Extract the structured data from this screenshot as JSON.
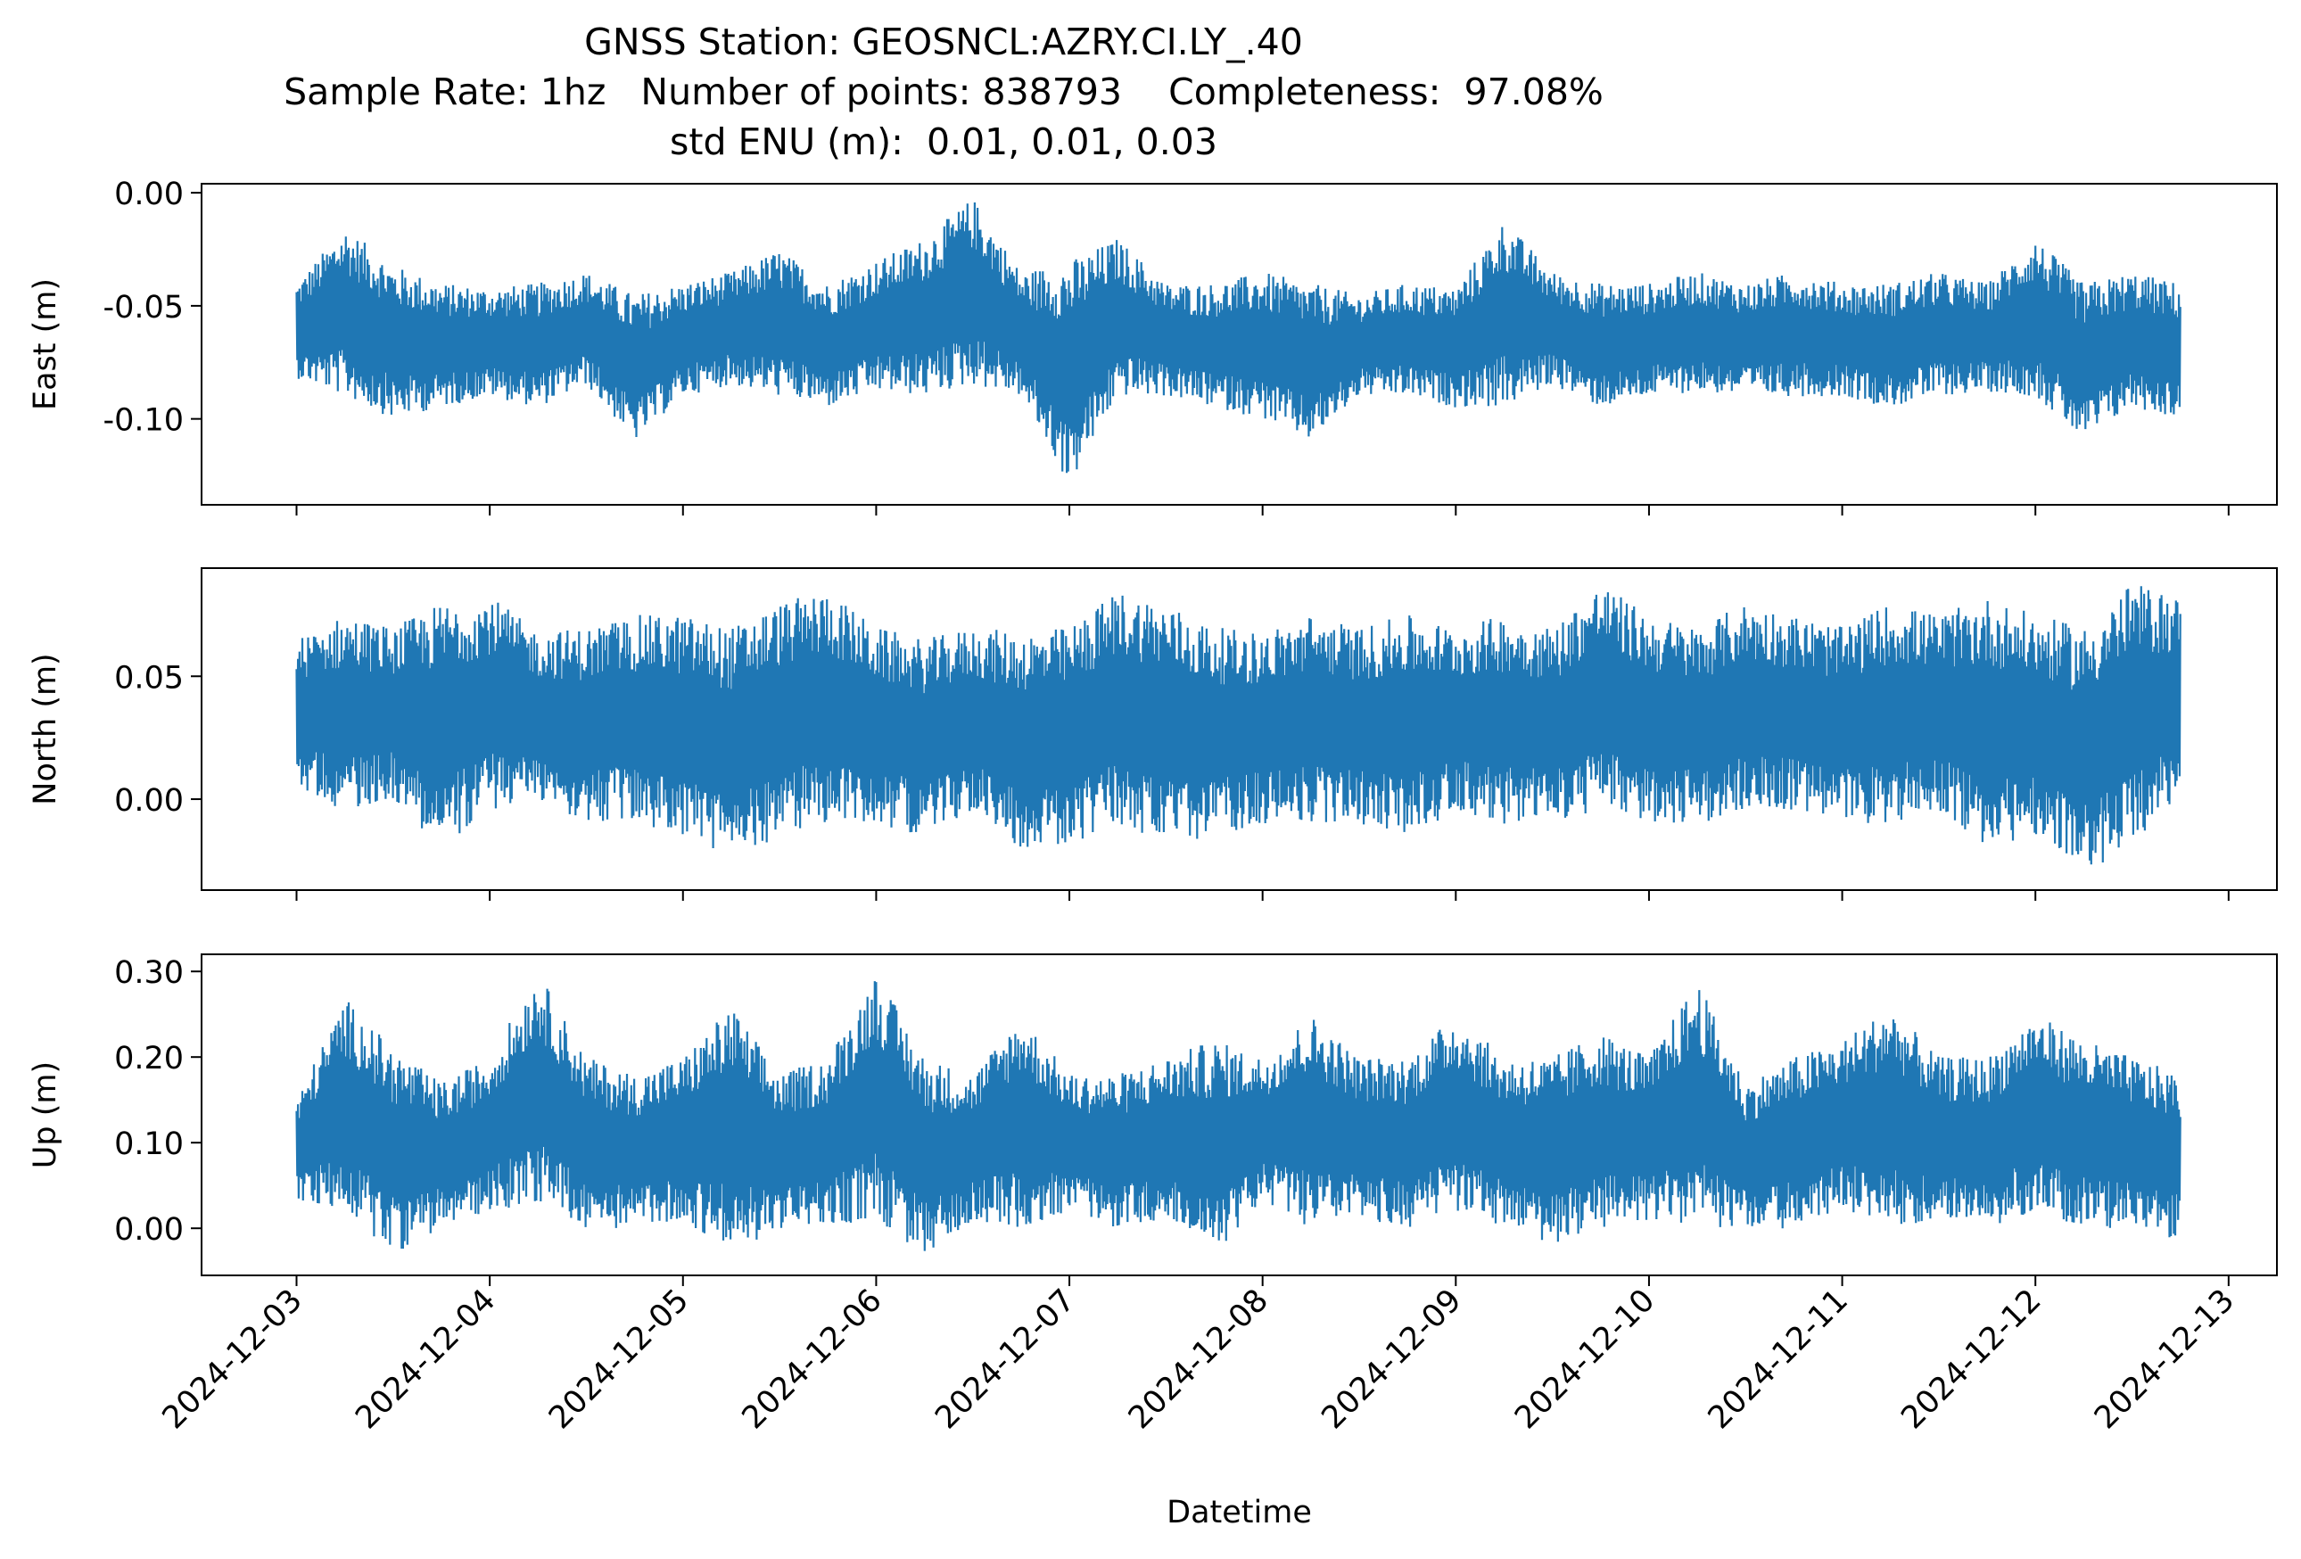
{
  "figure": {
    "title_lines": [
      "GNSS Station: GEOSNCL:AZRY.CI.LY_.40",
      "Sample Rate: 1hz   Number of points: 838793    Completeness:  97.08%",
      "std ENU (m):  0.01, 0.01, 0.03"
    ],
    "line_color": "#1f77b4"
  },
  "chart_data": [
    {
      "type": "line",
      "name": "east-panel",
      "ylabel": "East (m)",
      "xlabel": "",
      "xlim": [
        "2024-12-02T12:12:00",
        "2024-12-13T06:00:00"
      ],
      "ylim": [
        -0.138,
        0.004
      ],
      "yticks": [
        0.0,
        -0.05,
        -0.1
      ],
      "ytick_labels": [
        "0.00",
        "-0.05",
        "-0.10"
      ],
      "x_range": [
        "2024-12-03T00:00:00",
        "2024-12-12T18:00:00"
      ],
      "envelope_hours": [
        0,
        6,
        12,
        18,
        24,
        30,
        36,
        42,
        48,
        54,
        60,
        66,
        72,
        78,
        84,
        90,
        96,
        102,
        108,
        114,
        120,
        126,
        132,
        138,
        144,
        150,
        156,
        162,
        168,
        174,
        180,
        186,
        192,
        198,
        204,
        210,
        216,
        222,
        228,
        234
      ],
      "envelope_upper": [
        -0.04,
        -0.015,
        -0.032,
        -0.04,
        -0.042,
        -0.04,
        -0.035,
        -0.045,
        -0.04,
        -0.035,
        -0.025,
        -0.04,
        -0.03,
        -0.02,
        -0.002,
        -0.035,
        -0.03,
        -0.02,
        -0.04,
        -0.04,
        -0.035,
        -0.04,
        -0.045,
        -0.04,
        -0.042,
        -0.012,
        -0.035,
        -0.04,
        -0.04,
        -0.035,
        -0.04,
        -0.035,
        -0.04,
        -0.04,
        -0.035,
        -0.04,
        -0.02,
        -0.04,
        -0.035,
        -0.04
      ],
      "envelope_lower": [
        -0.082,
        -0.09,
        -0.1,
        -0.095,
        -0.09,
        -0.095,
        -0.085,
        -0.11,
        -0.09,
        -0.085,
        -0.09,
        -0.095,
        -0.088,
        -0.09,
        -0.085,
        -0.09,
        -0.13,
        -0.09,
        -0.09,
        -0.095,
        -0.1,
        -0.11,
        -0.09,
        -0.09,
        -0.095,
        -0.095,
        -0.085,
        -0.095,
        -0.09,
        -0.088,
        -0.09,
        -0.09,
        -0.09,
        -0.095,
        -0.09,
        -0.088,
        -0.09,
        -0.11,
        -0.095,
        -0.1
      ]
    },
    {
      "type": "line",
      "name": "north-panel",
      "ylabel": "North (m)",
      "xlabel": "",
      "xlim": [
        "2024-12-02T12:12:00",
        "2024-12-13T06:00:00"
      ],
      "ylim": [
        -0.037,
        0.094
      ],
      "yticks": [
        0.05,
        0.0
      ],
      "ytick_labels": [
        "0.05",
        "0.00"
      ],
      "x_range": [
        "2024-12-03T00:00:00",
        "2024-12-12T18:00:00"
      ],
      "envelope_hours": [
        0,
        6,
        12,
        18,
        24,
        30,
        36,
        42,
        48,
        54,
        60,
        66,
        72,
        78,
        84,
        90,
        96,
        102,
        108,
        114,
        120,
        126,
        132,
        138,
        144,
        150,
        156,
        162,
        168,
        174,
        180,
        186,
        192,
        198,
        204,
        210,
        216,
        222,
        228,
        234
      ],
      "envelope_upper": [
        0.065,
        0.075,
        0.07,
        0.08,
        0.083,
        0.068,
        0.07,
        0.075,
        0.075,
        0.07,
        0.08,
        0.085,
        0.07,
        0.065,
        0.07,
        0.068,
        0.07,
        0.085,
        0.08,
        0.07,
        0.068,
        0.075,
        0.07,
        0.075,
        0.07,
        0.075,
        0.07,
        0.088,
        0.075,
        0.07,
        0.08,
        0.075,
        0.07,
        0.08,
        0.075,
        0.082,
        0.075,
        0.07,
        0.088,
        0.082
      ],
      "envelope_lower": [
        0.005,
        -0.005,
        0.0,
        -0.02,
        -0.005,
        0.0,
        -0.01,
        -0.01,
        -0.015,
        -0.025,
        -0.015,
        -0.01,
        -0.01,
        -0.015,
        -0.005,
        -0.02,
        -0.02,
        -0.01,
        -0.02,
        -0.015,
        -0.01,
        -0.01,
        -0.01,
        -0.015,
        -0.005,
        -0.01,
        -0.01,
        -0.005,
        -0.01,
        -0.01,
        -0.005,
        -0.005,
        -0.01,
        -0.01,
        -0.005,
        -0.02,
        -0.015,
        -0.03,
        -0.02,
        0.0
      ]
    },
    {
      "type": "line",
      "name": "up-panel",
      "ylabel": "Up (m)",
      "xlabel": "Datetime",
      "xlim": [
        "2024-12-02T12:12:00",
        "2024-12-13T06:00:00"
      ],
      "ylim": [
        -0.055,
        0.32
      ],
      "yticks": [
        0.3,
        0.2,
        0.1,
        0.0
      ],
      "ytick_labels": [
        "0.30",
        "0.20",
        "0.10",
        "0.00"
      ],
      "x_range": [
        "2024-12-03T00:00:00",
        "2024-12-12T18:00:00"
      ],
      "envelope_hours": [
        0,
        6,
        12,
        18,
        24,
        30,
        36,
        42,
        48,
        54,
        60,
        66,
        72,
        78,
        84,
        90,
        96,
        102,
        108,
        114,
        120,
        126,
        132,
        138,
        144,
        150,
        156,
        162,
        168,
        174,
        180,
        186,
        192,
        198,
        204,
        210,
        216,
        222,
        228,
        234
      ],
      "envelope_upper": [
        0.15,
        0.27,
        0.21,
        0.17,
        0.2,
        0.3,
        0.2,
        0.18,
        0.2,
        0.26,
        0.18,
        0.2,
        0.3,
        0.2,
        0.18,
        0.25,
        0.18,
        0.18,
        0.2,
        0.22,
        0.2,
        0.25,
        0.2,
        0.2,
        0.25,
        0.2,
        0.2,
        0.23,
        0.2,
        0.29,
        0.17,
        0.2,
        0.22,
        0.26,
        0.2,
        0.2,
        0.25,
        0.22,
        0.2,
        0.18
      ],
      "envelope_lower": [
        0.03,
        0.02,
        -0.03,
        0.0,
        0.02,
        0.03,
        0.0,
        0.0,
        0.01,
        -0.03,
        0.0,
        0.0,
        0.01,
        -0.035,
        0.01,
        0.0,
        0.02,
        0.0,
        0.01,
        -0.03,
        0.03,
        0.0,
        0.01,
        0.0,
        0.02,
        0.0,
        -0.02,
        0.0,
        0.01,
        0.0,
        0.0,
        0.0,
        0.02,
        0.0,
        0.01,
        0.0,
        0.02,
        0.0,
        0.0,
        -0.015
      ]
    }
  ],
  "xaxis": {
    "tick_dates": [
      "2024-12-03",
      "2024-12-04",
      "2024-12-05",
      "2024-12-06",
      "2024-12-07",
      "2024-12-08",
      "2024-12-09",
      "2024-12-10",
      "2024-12-11",
      "2024-12-12",
      "2024-12-13"
    ],
    "tick_labels": [
      "2024-12-03",
      "2024-12-04",
      "2024-12-05",
      "2024-12-06",
      "2024-12-07",
      "2024-12-08",
      "2024-12-09",
      "2024-12-10",
      "2024-12-11",
      "2024-12-12",
      "2024-12-13"
    ]
  }
}
